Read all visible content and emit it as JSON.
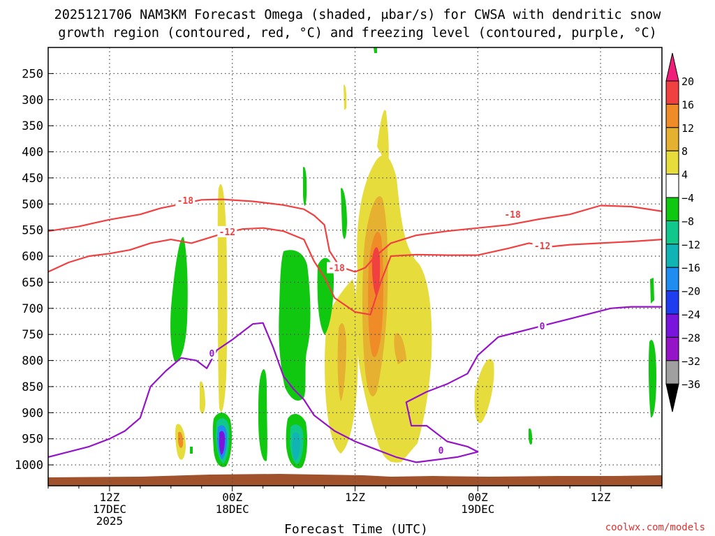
{
  "chart_data": {
    "type": "heatmap",
    "title_line1": "2025121706 NAM3KM Forecast Omega (shaded, μbar/s) for CWSA with dendritic snow",
    "title_line2": "growth region (contoured, red, °C) and freezing level (contoured, purple, °C)",
    "xlabel": "Forecast Time (UTC)",
    "credit": "coolwx.com/models",
    "x_ticks": [
      {
        "hour": 12,
        "l1": "12Z",
        "l2": "17DEC",
        "l3": "2025"
      },
      {
        "hour": 24,
        "l1": "00Z",
        "l2": "18DEC",
        "l3": ""
      },
      {
        "hour": 36,
        "l1": "12Z",
        "l2": "",
        "l3": ""
      },
      {
        "hour": 48,
        "l1": "00Z",
        "l2": "19DEC",
        "l3": ""
      },
      {
        "hour": 60,
        "l1": "12Z",
        "l2": "",
        "l3": ""
      }
    ],
    "x_range_hours": [
      6,
      66
    ],
    "y_range_hpa": [
      200,
      1040
    ],
    "y_ticks": [
      250,
      300,
      350,
      400,
      450,
      500,
      550,
      600,
      650,
      700,
      750,
      800,
      850,
      900,
      950,
      1000
    ],
    "grid": true,
    "colorbar": {
      "labels": [
        "20",
        "16",
        "12",
        "8",
        "4",
        "−4",
        "−8",
        "−12",
        "−16",
        "−20",
        "−24",
        "−28",
        "−32",
        "−36"
      ],
      "bins": [
        {
          "from": 16,
          "to": 20,
          "color": "#f04040"
        },
        {
          "from": 12,
          "to": 16,
          "color": "#f08c28"
        },
        {
          "from": 8,
          "to": 12,
          "color": "#e6b030"
        },
        {
          "from": 4,
          "to": 8,
          "color": "#e6dc3c"
        },
        {
          "from": -4,
          "to": 4,
          "color": "#ffffff"
        },
        {
          "from": -8,
          "to": -4,
          "color": "#10c810"
        },
        {
          "from": -12,
          "to": -8,
          "color": "#10c88c"
        },
        {
          "from": -16,
          "to": -12,
          "color": "#10b4b4"
        },
        {
          "from": -20,
          "to": -16,
          "color": "#1e8cf0"
        },
        {
          "from": -24,
          "to": -20,
          "color": "#1e3cf0"
        },
        {
          "from": -28,
          "to": -24,
          "color": "#7814dc"
        },
        {
          "from": -32,
          "to": -28,
          "color": "#9614c8"
        },
        {
          "from": -36,
          "to": -32,
          "color": "#a0a0a0"
        }
      ],
      "over_color": "#f01e78",
      "under_color": "#000000"
    },
    "contours": [
      {
        "label": "-18",
        "color": "#f04040",
        "points": [
          [
            6,
            552
          ],
          [
            9,
            543
          ],
          [
            12,
            530
          ],
          [
            15,
            520
          ],
          [
            17,
            508
          ],
          [
            19,
            500
          ],
          [
            21,
            492
          ],
          [
            23,
            491
          ],
          [
            26,
            495
          ],
          [
            29,
            502
          ],
          [
            31,
            510
          ],
          [
            32,
            522
          ],
          [
            33,
            540
          ],
          [
            33.5,
            590
          ],
          [
            34.5,
            620
          ],
          [
            36,
            630
          ],
          [
            37,
            622
          ],
          [
            38,
            600
          ],
          [
            39.5,
            575
          ],
          [
            42,
            560
          ],
          [
            45,
            552
          ],
          [
            48,
            546
          ],
          [
            51,
            540
          ],
          [
            54,
            529
          ],
          [
            57,
            520
          ],
          [
            60,
            503
          ],
          [
            63,
            505
          ],
          [
            66,
            514
          ]
        ],
        "labels": [
          [
            19.4,
            493
          ],
          [
            34.2,
            622
          ],
          [
            51.4,
            520
          ]
        ]
      },
      {
        "label": "-12",
        "color": "#f04040",
        "points": [
          [
            6,
            630
          ],
          [
            8,
            612
          ],
          [
            10,
            600
          ],
          [
            12,
            595
          ],
          [
            14,
            588
          ],
          [
            16,
            575
          ],
          [
            18,
            568
          ],
          [
            20,
            575
          ],
          [
            22,
            563
          ],
          [
            23,
            557
          ],
          [
            25,
            548
          ],
          [
            27,
            546
          ],
          [
            29,
            552
          ],
          [
            31,
            568
          ],
          [
            32,
            610
          ],
          [
            33,
            640
          ],
          [
            34,
            680
          ],
          [
            36,
            707
          ],
          [
            37.5,
            712
          ],
          [
            38.5,
            650
          ],
          [
            39.5,
            600
          ],
          [
            42,
            597
          ],
          [
            45,
            598
          ],
          [
            48,
            598
          ],
          [
            51,
            585
          ],
          [
            53,
            575
          ],
          [
            55,
            582
          ],
          [
            57,
            578
          ],
          [
            60,
            575
          ],
          [
            63,
            572
          ],
          [
            66,
            568
          ]
        ],
        "labels": [
          [
            23.5,
            553
          ],
          [
            54.3,
            580
          ]
        ]
      },
      {
        "label": "0",
        "color": "#9614c8",
        "points": [
          [
            6,
            985
          ],
          [
            8,
            975
          ],
          [
            10,
            965
          ],
          [
            12,
            950
          ],
          [
            13.5,
            935
          ],
          [
            15,
            910
          ],
          [
            16,
            850
          ],
          [
            17.5,
            820
          ],
          [
            19,
            795
          ],
          [
            20.5,
            800
          ],
          [
            21.5,
            815
          ],
          [
            22.5,
            780
          ],
          [
            24,
            760
          ],
          [
            25,
            745
          ],
          [
            26,
            730
          ],
          [
            27,
            728
          ],
          [
            28,
            775
          ],
          [
            29,
            830
          ],
          [
            30,
            855
          ],
          [
            31,
            875
          ],
          [
            32,
            905
          ],
          [
            34,
            935
          ],
          [
            36,
            955
          ],
          [
            38,
            970
          ],
          [
            40,
            985
          ],
          [
            42,
            995
          ],
          [
            44,
            990
          ],
          [
            46,
            985
          ],
          [
            48,
            975
          ],
          [
            47,
            965
          ],
          [
            45,
            955
          ],
          [
            43,
            925
          ],
          [
            41.5,
            925
          ],
          [
            41,
            880
          ],
          [
            43,
            860
          ],
          [
            45,
            845
          ],
          [
            47,
            825
          ],
          [
            48,
            790
          ],
          [
            50,
            755
          ],
          [
            52,
            745
          ],
          [
            55,
            730
          ],
          [
            57,
            720
          ],
          [
            59,
            710
          ],
          [
            61,
            700
          ],
          [
            63,
            697
          ],
          [
            66,
            697
          ]
        ],
        "labels": [
          [
            22,
            786
          ],
          [
            44.4,
            972
          ],
          [
            54.3,
            734
          ]
        ]
      }
    ]
  }
}
